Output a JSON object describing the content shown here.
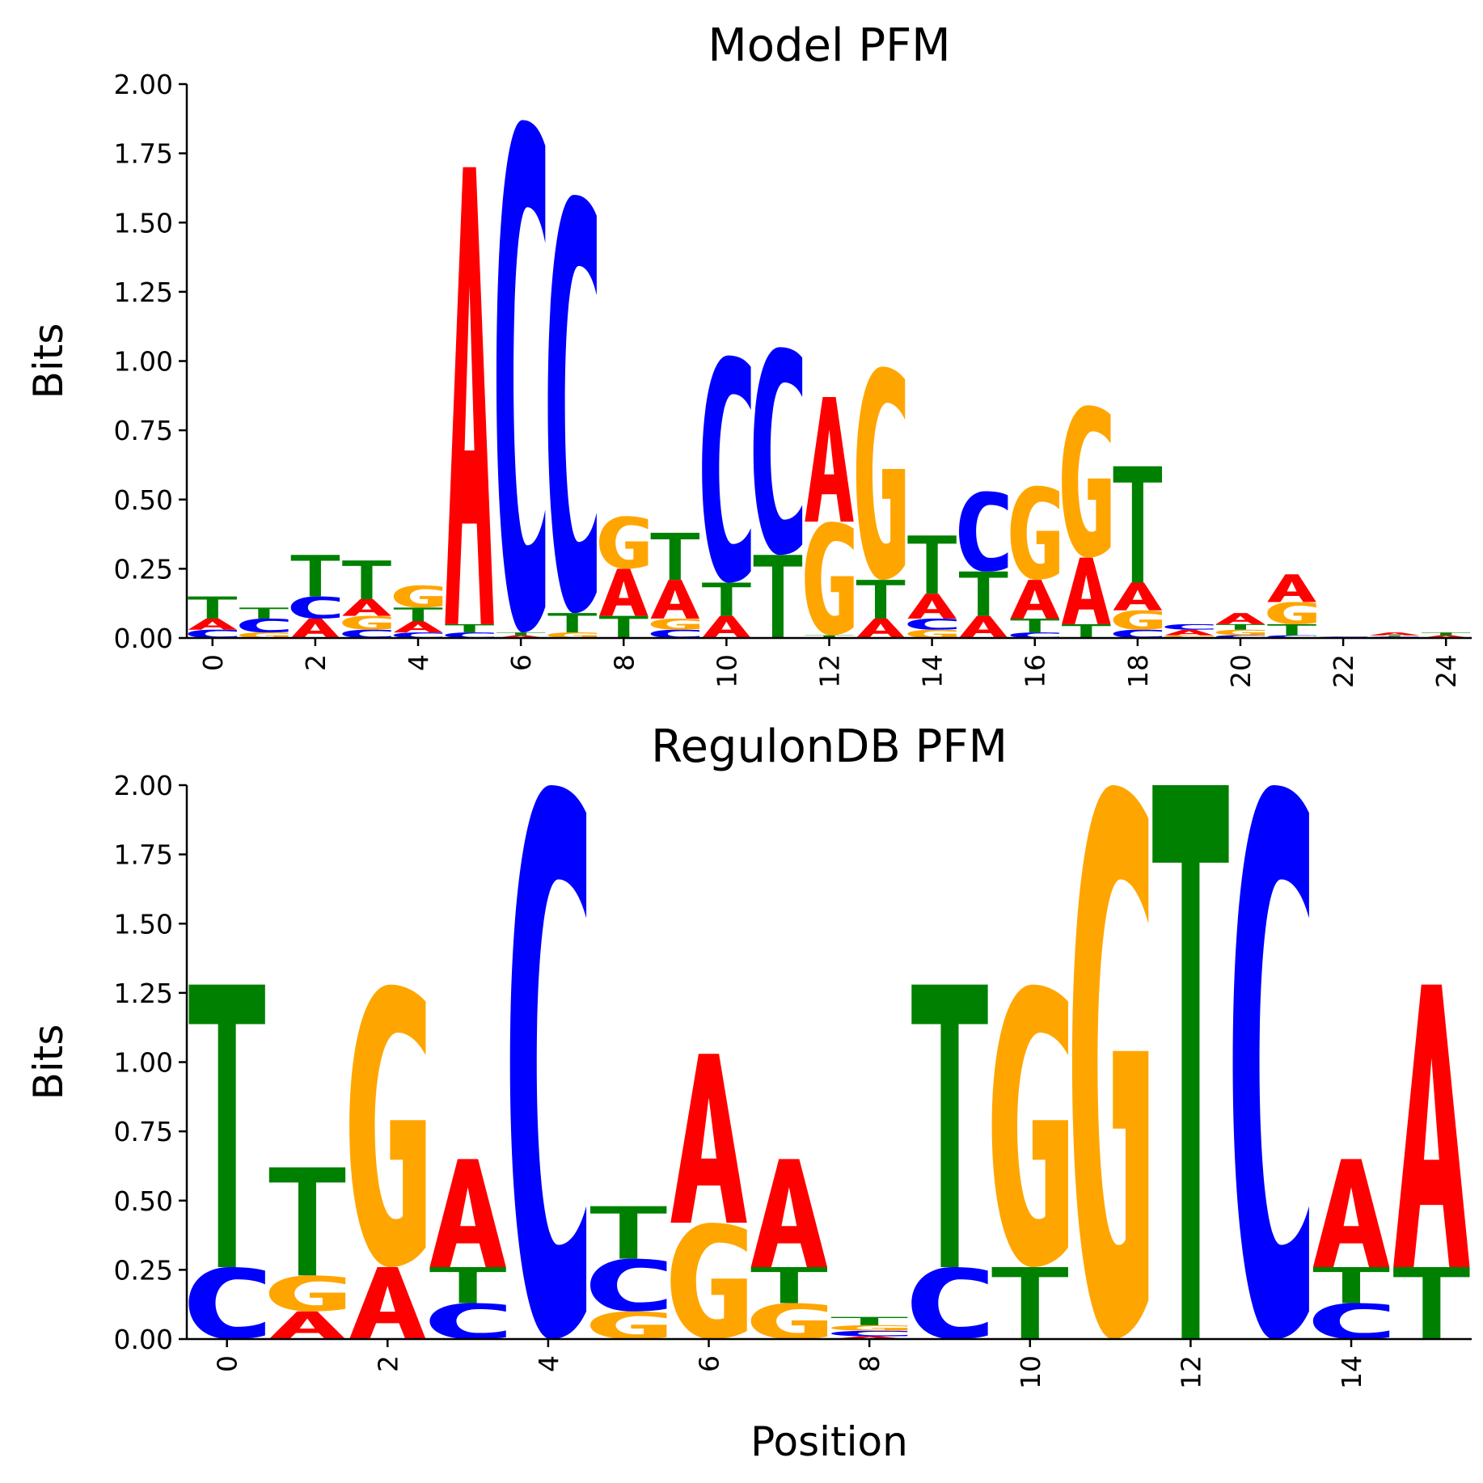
{
  "colors": {
    "A": "#ff0000",
    "C": "#0000ff",
    "G": "#ffa500",
    "T": "#008000"
  },
  "chart_data": [
    {
      "type": "sequence-logo",
      "title": "Model PFM",
      "ylabel": "Bits",
      "xlabel": "",
      "ylim": [
        0,
        2.0
      ],
      "xlim": [
        -0.5,
        24.5
      ],
      "yticks": [
        "0.00",
        "0.25",
        "0.50",
        "0.75",
        "1.00",
        "1.25",
        "1.50",
        "1.75",
        "2.00"
      ],
      "xticks": [
        "0",
        "2",
        "4",
        "6",
        "8",
        "10",
        "12",
        "14",
        "16",
        "18",
        "20",
        "22",
        "24"
      ],
      "columns": [
        {
          "position": 0,
          "letters": [
            [
              "C",
              0.03
            ],
            [
              "A",
              0.04
            ],
            [
              "T",
              0.08
            ]
          ]
        },
        {
          "position": 1,
          "letters": [
            [
              "G",
              0.02
            ],
            [
              "C",
              0.05
            ],
            [
              "T",
              0.04
            ]
          ]
        },
        {
          "position": 2,
          "letters": [
            [
              "A",
              0.07
            ],
            [
              "C",
              0.08
            ],
            [
              "T",
              0.15
            ]
          ]
        },
        {
          "position": 3,
          "letters": [
            [
              "C",
              0.03
            ],
            [
              "G",
              0.05
            ],
            [
              "A",
              0.06
            ],
            [
              "T",
              0.14
            ]
          ]
        },
        {
          "position": 4,
          "letters": [
            [
              "C",
              0.02
            ],
            [
              "A",
              0.04
            ],
            [
              "T",
              0.05
            ],
            [
              "G",
              0.08
            ]
          ]
        },
        {
          "position": 5,
          "letters": [
            [
              "C",
              0.02
            ],
            [
              "T",
              0.03
            ],
            [
              "A",
              1.65
            ]
          ]
        },
        {
          "position": 6,
          "letters": [
            [
              "A",
              0.01
            ],
            [
              "T",
              0.01
            ],
            [
              "C",
              1.85
            ]
          ]
        },
        {
          "position": 7,
          "letters": [
            [
              "G",
              0.02
            ],
            [
              "T",
              0.07
            ],
            [
              "C",
              1.51
            ]
          ]
        },
        {
          "position": 8,
          "letters": [
            [
              "T",
              0.08
            ],
            [
              "A",
              0.17
            ],
            [
              "G",
              0.19
            ]
          ]
        },
        {
          "position": 9,
          "letters": [
            [
              "C",
              0.03
            ],
            [
              "G",
              0.04
            ],
            [
              "A",
              0.14
            ],
            [
              "T",
              0.17
            ]
          ]
        },
        {
          "position": 10,
          "letters": [
            [
              "A",
              0.08
            ],
            [
              "T",
              0.12
            ],
            [
              "C",
              0.82
            ]
          ]
        },
        {
          "position": 11,
          "letters": [
            [
              "T",
              0.3
            ],
            [
              "C",
              0.75
            ]
          ]
        },
        {
          "position": 12,
          "letters": [
            [
              "T",
              0.01
            ],
            [
              "G",
              0.41
            ],
            [
              "A",
              0.45
            ]
          ]
        },
        {
          "position": 13,
          "letters": [
            [
              "A",
              0.07
            ],
            [
              "T",
              0.14
            ],
            [
              "G",
              0.77
            ]
          ]
        },
        {
          "position": 14,
          "letters": [
            [
              "G",
              0.03
            ],
            [
              "C",
              0.04
            ],
            [
              "A",
              0.09
            ],
            [
              "T",
              0.21
            ]
          ]
        },
        {
          "position": 15,
          "letters": [
            [
              "A",
              0.08
            ],
            [
              "T",
              0.16
            ],
            [
              "C",
              0.29
            ]
          ]
        },
        {
          "position": 16,
          "letters": [
            [
              "C",
              0.02
            ],
            [
              "T",
              0.05
            ],
            [
              "A",
              0.14
            ],
            [
              "G",
              0.34
            ]
          ]
        },
        {
          "position": 17,
          "letters": [
            [
              "T",
              0.05
            ],
            [
              "A",
              0.24
            ],
            [
              "G",
              0.55
            ]
          ]
        },
        {
          "position": 18,
          "letters": [
            [
              "C",
              0.03
            ],
            [
              "G",
              0.07
            ],
            [
              "A",
              0.1
            ],
            [
              "T",
              0.42
            ]
          ]
        },
        {
          "position": 19,
          "letters": [
            [
              "G",
              0.01
            ],
            [
              "A",
              0.02
            ],
            [
              "C",
              0.02
            ]
          ]
        },
        {
          "position": 20,
          "letters": [
            [
              "C",
              0.01
            ],
            [
              "G",
              0.02
            ],
            [
              "T",
              0.02
            ],
            [
              "A",
              0.04
            ]
          ]
        },
        {
          "position": 21,
          "letters": [
            [
              "C",
              0.01
            ],
            [
              "T",
              0.04
            ],
            [
              "G",
              0.08
            ],
            [
              "A",
              0.1
            ]
          ]
        },
        {
          "position": 22,
          "letters": [
            [
              "C",
              0.005
            ]
          ]
        },
        {
          "position": 23,
          "letters": [
            [
              "C",
              0.005
            ],
            [
              "T",
              0.005
            ],
            [
              "A",
              0.01
            ]
          ]
        },
        {
          "position": 24,
          "letters": [
            [
              "A",
              0.01
            ],
            [
              "T",
              0.01
            ]
          ]
        }
      ]
    },
    {
      "type": "sequence-logo",
      "title": "RegulonDB PFM",
      "ylabel": "Bits",
      "xlabel": "Position",
      "ylim": [
        0,
        2.0
      ],
      "xlim": [
        -0.5,
        15.5
      ],
      "yticks": [
        "0.00",
        "0.25",
        "0.50",
        "0.75",
        "1.00",
        "1.25",
        "1.50",
        "1.75",
        "2.00"
      ],
      "xticks": [
        "0",
        "2",
        "4",
        "6",
        "8",
        "10",
        "12",
        "14"
      ],
      "columns": [
        {
          "position": 0,
          "letters": [
            [
              "C",
              0.26
            ],
            [
              "T",
              1.02
            ]
          ]
        },
        {
          "position": 1,
          "letters": [
            [
              "A",
              0.1
            ],
            [
              "G",
              0.13
            ],
            [
              "T",
              0.39
            ]
          ]
        },
        {
          "position": 2,
          "letters": [
            [
              "A",
              0.26
            ],
            [
              "G",
              1.02
            ]
          ]
        },
        {
          "position": 3,
          "letters": [
            [
              "C",
              0.13
            ],
            [
              "T",
              0.13
            ],
            [
              "A",
              0.39
            ]
          ]
        },
        {
          "position": 4,
          "letters": [
            [
              "C",
              2.0
            ]
          ]
        },
        {
          "position": 5,
          "letters": [
            [
              "G",
              0.1
            ],
            [
              "C",
              0.19
            ],
            [
              "T",
              0.19
            ]
          ]
        },
        {
          "position": 6,
          "letters": [
            [
              "G",
              0.42
            ],
            [
              "A",
              0.61
            ]
          ]
        },
        {
          "position": 7,
          "letters": [
            [
              "G",
              0.13
            ],
            [
              "T",
              0.13
            ],
            [
              "A",
              0.39
            ]
          ]
        },
        {
          "position": 8,
          "letters": [
            [
              "A",
              0.01
            ],
            [
              "C",
              0.02
            ],
            [
              "G",
              0.02
            ],
            [
              "T",
              0.03
            ]
          ]
        },
        {
          "position": 9,
          "letters": [
            [
              "C",
              0.26
            ],
            [
              "T",
              1.02
            ]
          ]
        },
        {
          "position": 10,
          "letters": [
            [
              "T",
              0.26
            ],
            [
              "G",
              1.02
            ]
          ]
        },
        {
          "position": 11,
          "letters": [
            [
              "G",
              2.0
            ]
          ]
        },
        {
          "position": 12,
          "letters": [
            [
              "T",
              2.0
            ]
          ]
        },
        {
          "position": 13,
          "letters": [
            [
              "C",
              2.0
            ]
          ]
        },
        {
          "position": 14,
          "letters": [
            [
              "C",
              0.13
            ],
            [
              "T",
              0.13
            ],
            [
              "A",
              0.39
            ]
          ]
        },
        {
          "position": 15,
          "letters": [
            [
              "T",
              0.26
            ],
            [
              "A",
              1.02
            ]
          ]
        }
      ]
    }
  ]
}
